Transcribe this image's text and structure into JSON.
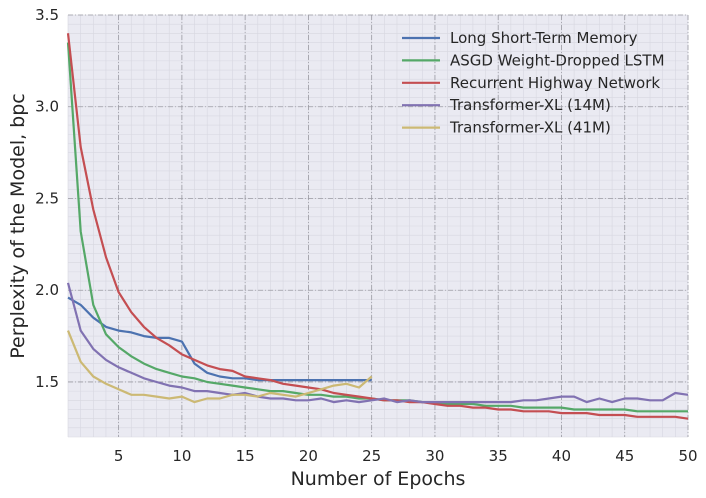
{
  "chart_data": {
    "type": "line",
    "xlabel": "Number of Epochs",
    "ylabel": "Perplexity of the Model, bpc",
    "xlim": [
      1,
      50
    ],
    "ylim": [
      1.2,
      3.5
    ],
    "xticks": [
      5,
      10,
      15,
      20,
      25,
      30,
      35,
      40,
      45,
      50
    ],
    "yticks": [
      1.5,
      2.0,
      2.5,
      3.0,
      3.5
    ],
    "grid": true,
    "legend": "top-right",
    "series": [
      {
        "name": "Long Short-Term Memory",
        "color": "#4c72b0",
        "x": [
          1,
          2,
          3,
          4,
          5,
          6,
          7,
          8,
          9,
          10,
          11,
          12,
          13,
          14,
          15,
          16,
          17,
          18,
          19,
          20,
          21,
          22,
          23,
          24,
          25
        ],
        "y": [
          1.96,
          1.92,
          1.85,
          1.8,
          1.78,
          1.77,
          1.75,
          1.74,
          1.74,
          1.72,
          1.6,
          1.55,
          1.53,
          1.52,
          1.52,
          1.51,
          1.51,
          1.51,
          1.51,
          1.51,
          1.51,
          1.51,
          1.51,
          1.51,
          1.51
        ]
      },
      {
        "name": "ASGD Weight-Dropped LSTM",
        "color": "#55a868",
        "x": [
          1,
          2,
          3,
          4,
          5,
          6,
          7,
          8,
          9,
          10,
          11,
          12,
          13,
          14,
          15,
          16,
          17,
          18,
          19,
          20,
          21,
          22,
          23,
          24,
          25,
          26,
          27,
          28,
          29,
          30,
          31,
          32,
          33,
          34,
          35,
          36,
          37,
          38,
          39,
          40,
          41,
          42,
          43,
          44,
          45,
          46,
          47,
          48,
          49,
          50
        ],
        "y": [
          3.35,
          2.32,
          1.92,
          1.76,
          1.69,
          1.64,
          1.6,
          1.57,
          1.55,
          1.53,
          1.52,
          1.5,
          1.49,
          1.48,
          1.47,
          1.46,
          1.45,
          1.45,
          1.44,
          1.43,
          1.43,
          1.42,
          1.42,
          1.41,
          1.41,
          1.4,
          1.4,
          1.4,
          1.39,
          1.39,
          1.38,
          1.38,
          1.38,
          1.37,
          1.37,
          1.37,
          1.36,
          1.36,
          1.36,
          1.36,
          1.35,
          1.35,
          1.35,
          1.35,
          1.35,
          1.34,
          1.34,
          1.34,
          1.34,
          1.34
        ]
      },
      {
        "name": "Recurrent Highway Network",
        "color": "#c44e52",
        "x": [
          1,
          2,
          3,
          4,
          5,
          6,
          7,
          8,
          9,
          10,
          11,
          12,
          13,
          14,
          15,
          16,
          17,
          18,
          19,
          20,
          21,
          22,
          23,
          24,
          25,
          26,
          27,
          28,
          29,
          30,
          31,
          32,
          33,
          34,
          35,
          36,
          37,
          38,
          39,
          40,
          41,
          42,
          43,
          44,
          45,
          46,
          47,
          48,
          49,
          50
        ],
        "y": [
          3.4,
          2.78,
          2.44,
          2.18,
          1.99,
          1.88,
          1.8,
          1.74,
          1.7,
          1.65,
          1.62,
          1.59,
          1.57,
          1.56,
          1.53,
          1.52,
          1.51,
          1.49,
          1.48,
          1.47,
          1.46,
          1.44,
          1.43,
          1.42,
          1.41,
          1.4,
          1.4,
          1.39,
          1.39,
          1.38,
          1.37,
          1.37,
          1.36,
          1.36,
          1.35,
          1.35,
          1.34,
          1.34,
          1.34,
          1.33,
          1.33,
          1.33,
          1.32,
          1.32,
          1.32,
          1.31,
          1.31,
          1.31,
          1.31,
          1.3
        ]
      },
      {
        "name": "Transformer-XL (14M)",
        "color": "#8172b2",
        "x": [
          1,
          2,
          3,
          4,
          5,
          6,
          7,
          8,
          9,
          10,
          11,
          12,
          13,
          14,
          15,
          16,
          17,
          18,
          19,
          20,
          21,
          22,
          23,
          24,
          25,
          26,
          27,
          28,
          29,
          30,
          31,
          32,
          33,
          34,
          35,
          36,
          37,
          38,
          39,
          40,
          41,
          42,
          43,
          44,
          45,
          46,
          47,
          48,
          49,
          50
        ],
        "y": [
          2.04,
          1.78,
          1.68,
          1.62,
          1.58,
          1.55,
          1.52,
          1.5,
          1.48,
          1.47,
          1.45,
          1.45,
          1.44,
          1.43,
          1.44,
          1.42,
          1.41,
          1.41,
          1.4,
          1.4,
          1.41,
          1.39,
          1.4,
          1.39,
          1.4,
          1.41,
          1.39,
          1.4,
          1.39,
          1.39,
          1.39,
          1.39,
          1.39,
          1.39,
          1.39,
          1.39,
          1.4,
          1.4,
          1.41,
          1.42,
          1.42,
          1.39,
          1.41,
          1.39,
          1.41,
          1.41,
          1.4,
          1.4,
          1.44,
          1.43
        ]
      },
      {
        "name": "Transformer-XL (41M)",
        "color": "#ccb974",
        "x": [
          1,
          2,
          3,
          4,
          5,
          6,
          7,
          8,
          9,
          10,
          11,
          12,
          13,
          14,
          15,
          16,
          17,
          18,
          19,
          20,
          21,
          22,
          23,
          24,
          25
        ],
        "y": [
          1.78,
          1.61,
          1.53,
          1.49,
          1.46,
          1.43,
          1.43,
          1.42,
          1.41,
          1.42,
          1.39,
          1.41,
          1.41,
          1.43,
          1.43,
          1.42,
          1.44,
          1.43,
          1.42,
          1.44,
          1.46,
          1.48,
          1.49,
          1.47,
          1.53
        ]
      }
    ]
  }
}
